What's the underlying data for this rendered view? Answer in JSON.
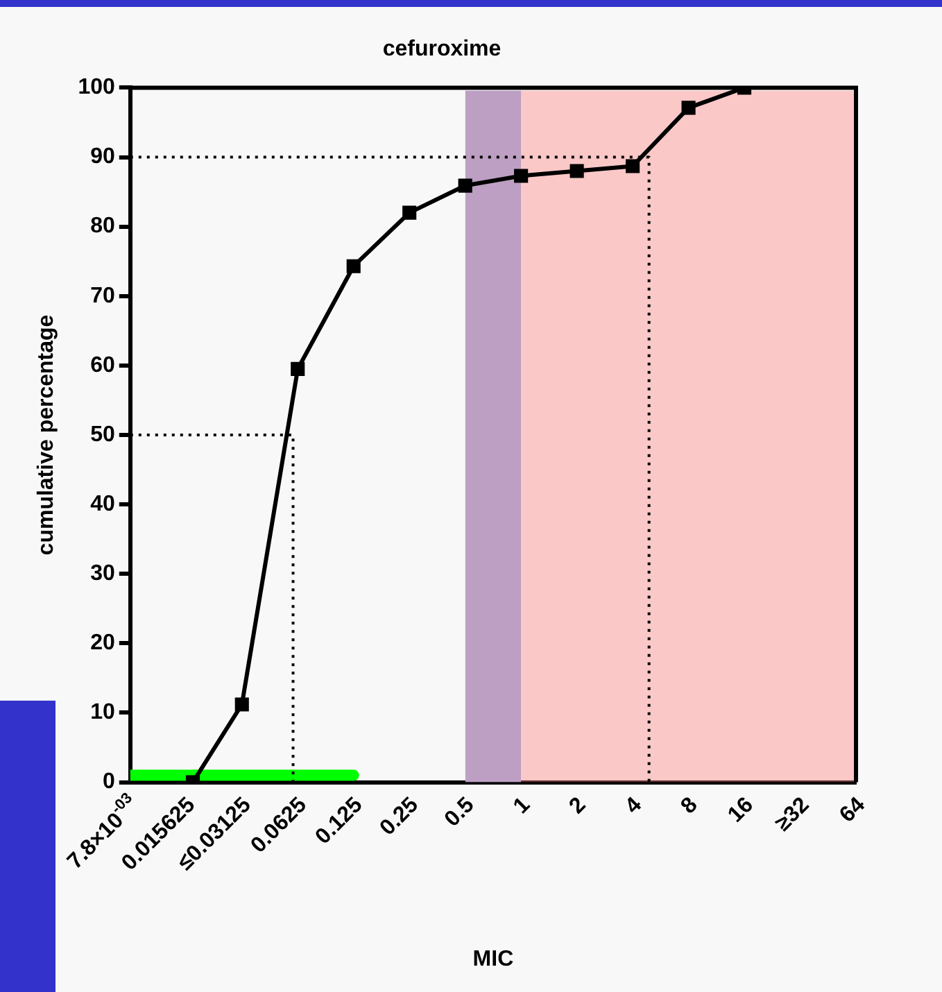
{
  "chart_data": {
    "type": "line",
    "title": "cefuroxime",
    "xlabel": "MIC",
    "ylabel": "cumulative percentage",
    "log": "x",
    "xlim": [
      0.0078125,
      64
    ],
    "xticks": [
      {
        "value": 0.0078125,
        "label": "7.8×10$^{-03}$"
      },
      0.015625,
      {
        "value": 0.03125,
        "label": "≤0.03125"
      },
      0.0625,
      0.125,
      0.25,
      0.5,
      1,
      2,
      4,
      8,
      16,
      {
        "value": 32,
        "label": "≥32"
      },
      64
    ],
    "ylim": [
      0,
      100
    ],
    "yticks": [
      0,
      10,
      20,
      30,
      40,
      50,
      60,
      70,
      80,
      90,
      100
    ],
    "grid": false,
    "legend": false,
    "bands": [
      {
        "axis": "x",
        "from": 0.5,
        "to": 1,
        "color": "#8fb4ee"
      },
      {
        "axis": "x",
        "from": 0.5,
        "to": 64,
        "color": "#ff8080"
      }
    ],
    "series": [
      {
        "type": "line",
        "color": "#000000",
        "marker": "square",
        "line_style": "solid",
        "x": [
          0.017,
          0.03125,
          0.0625,
          0.125,
          0.25,
          0.5,
          1,
          2,
          4,
          8,
          16
        ],
        "values": [
          0,
          11.2,
          59.5,
          74.3,
          82,
          85.9,
          87.3,
          88,
          88.7,
          97.1,
          100
        ]
      },
      {
        "type": "line",
        "color": "#000000",
        "marker": "none",
        "line_style": "dotted",
        "x": [
          0.0078125,
          0.059,
          0.059
        ],
        "values": [
          50,
          50,
          0
        ]
      },
      {
        "type": "line",
        "color": "#000000",
        "marker": "none",
        "line_style": "dotted",
        "x": [
          0.0078125,
          4.9,
          4.9
        ],
        "values": [
          90,
          90,
          0
        ]
      },
      {
        "type": "line",
        "color": "#00ff00",
        "marker": "none",
        "line_style": "solid",
        "x": [
          0.0078125,
          0.125
        ],
        "values": [
          1,
          1
        ]
      }
    ]
  }
}
